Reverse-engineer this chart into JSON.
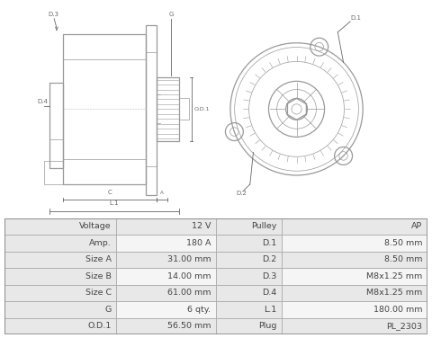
{
  "table_rows": [
    [
      "Voltage",
      "12 V",
      "Pulley",
      "AP"
    ],
    [
      "Amp.",
      "180 A",
      "D.1",
      "8.50 mm"
    ],
    [
      "Size A",
      "31.00 mm",
      "D.2",
      "8.50 mm"
    ],
    [
      "Size B",
      "14.00 mm",
      "D.3",
      "M8x1.25 mm"
    ],
    [
      "Size C",
      "61.00 mm",
      "D.4",
      "M8x1.25 mm"
    ],
    [
      "G",
      "6 qty.",
      "L.1",
      "180.00 mm"
    ],
    [
      "O.D.1",
      "56.50 mm",
      "Plug",
      "PL_2303"
    ]
  ],
  "col_starts": [
    0.0,
    0.265,
    0.5,
    0.655
  ],
  "col_ends": [
    0.265,
    0.5,
    0.655,
    1.0
  ],
  "bg_color": "#ffffff",
  "table_row_colors": [
    "#e8e8e8",
    "#f5f5f5"
  ],
  "table_border": "#b0b0b0",
  "text_color": "#444444",
  "dc": "#999999",
  "lc": "#666666",
  "drawing_bg": "#f8f8f8"
}
